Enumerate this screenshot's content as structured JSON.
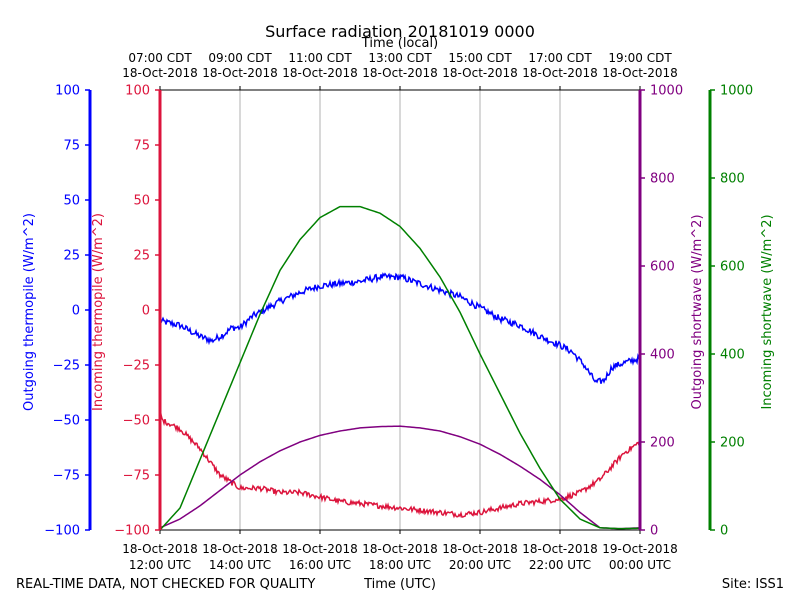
{
  "chart_data": {
    "type": "line",
    "title": "Surface radiation 20181019 0000",
    "top_axis_label": "Time (local)",
    "top_ticks": [
      {
        "line1": "07:00 CDT",
        "line2": "18-Oct-2018"
      },
      {
        "line1": "09:00 CDT",
        "line2": "18-Oct-2018"
      },
      {
        "line1": "11:00 CDT",
        "line2": "18-Oct-2018"
      },
      {
        "line1": "13:00 CDT",
        "line2": "18-Oct-2018"
      },
      {
        "line1": "15:00 CDT",
        "line2": "18-Oct-2018"
      },
      {
        "line1": "17:00 CDT",
        "line2": "18-Oct-2018"
      },
      {
        "line1": "19:00 CDT",
        "line2": "18-Oct-2018"
      }
    ],
    "bottom_ticks": [
      {
        "line1": "18-Oct-2018",
        "line2": "12:00 UTC"
      },
      {
        "line1": "18-Oct-2018",
        "line2": "14:00 UTC"
      },
      {
        "line1": "18-Oct-2018",
        "line2": "16:00 UTC"
      },
      {
        "line1": "18-Oct-2018",
        "line2": "18:00 UTC"
      },
      {
        "line1": "18-Oct-2018",
        "line2": "20:00 UTC"
      },
      {
        "line1": "18-Oct-2018",
        "line2": "22:00 UTC"
      },
      {
        "line1": "19-Oct-2018",
        "line2": "00:00 UTC"
      }
    ],
    "xlabel": "Time (UTC)",
    "xlim_hours_utc": [
      12,
      24
    ],
    "footer_left": "REAL-TIME DATA, NOT CHECKED FOR QUALITY",
    "footer_right": "Site: ISS1",
    "axes": {
      "outgoing_thermopile": {
        "label": "Outgoing thermopile (W/m^2)",
        "color": "#0000ff",
        "ylim": [
          -100,
          100
        ],
        "ticks": [
          "100",
          "75",
          "50",
          "25",
          "0",
          "−25",
          "−50",
          "−75",
          "−100"
        ]
      },
      "incoming_thermopile": {
        "label": "Incoming thermopile (W/m^2)",
        "color": "#dc143c",
        "ylim": [
          -100,
          100
        ],
        "ticks": [
          "100",
          "75",
          "50",
          "25",
          "0",
          "−25",
          "−50",
          "−75",
          "−100"
        ]
      },
      "outgoing_shortwave": {
        "label": "Outgoing shortwave (W/m^2)",
        "color": "#800080",
        "ylim": [
          0,
          1000
        ],
        "ticks": [
          "1000",
          "800",
          "600",
          "400",
          "200",
          "0"
        ]
      },
      "incoming_shortwave": {
        "label": "Incoming shortwave (W/m^2)",
        "color": "#008000",
        "ylim": [
          0,
          1000
        ],
        "ticks": [
          "1000",
          "800",
          "600",
          "400",
          "200",
          "0"
        ]
      }
    },
    "series": [
      {
        "name": "Outgoing thermopile",
        "axis": "outgoing_thermopile",
        "color": "#0000ff",
        "noise": 1.5,
        "x": [
          12.0,
          12.5,
          13.0,
          13.3,
          13.6,
          13.8,
          14.0,
          14.3,
          14.6,
          15.0,
          15.5,
          16.0,
          16.5,
          17.0,
          17.5,
          18.0,
          18.5,
          19.0,
          19.5,
          20.0,
          20.5,
          21.0,
          21.5,
          22.0,
          22.3,
          22.6,
          22.9,
          23.1,
          23.3,
          23.6,
          24.0
        ],
        "y": [
          -5,
          -7,
          -12,
          -14,
          -11,
          -8,
          -8,
          -3,
          0,
          4,
          8,
          11,
          12,
          13,
          15,
          15,
          12,
          9,
          6,
          1,
          -4,
          -7,
          -12,
          -16,
          -19,
          -25,
          -33,
          -32,
          -26,
          -24,
          -22
        ]
      },
      {
        "name": "Incoming thermopile",
        "axis": "incoming_thermopile",
        "color": "#dc143c",
        "noise": 1.2,
        "x": [
          12.0,
          12.05,
          12.5,
          13.0,
          13.5,
          14.0,
          14.5,
          15.0,
          15.5,
          16.0,
          16.5,
          17.0,
          17.5,
          18.0,
          18.5,
          19.0,
          19.5,
          20.0,
          20.5,
          21.0,
          21.5,
          22.0,
          22.5,
          23.0,
          23.3,
          23.6,
          24.0
        ],
        "y": [
          -45,
          -50,
          -54,
          -63,
          -75,
          -81,
          -81,
          -83,
          -83,
          -85,
          -87,
          -88,
          -89,
          -90,
          -91,
          -92,
          -93,
          -92,
          -90,
          -88,
          -87,
          -86,
          -83,
          -77,
          -71,
          -65,
          -60
        ]
      },
      {
        "name": "Outgoing shortwave",
        "axis": "outgoing_shortwave",
        "color": "#800080",
        "noise": 0,
        "x": [
          12.0,
          12.5,
          13.0,
          13.5,
          14.0,
          14.5,
          15.0,
          15.5,
          16.0,
          16.5,
          17.0,
          17.5,
          18.0,
          18.5,
          19.0,
          19.5,
          20.0,
          20.5,
          21.0,
          21.5,
          22.0,
          22.5,
          23.0,
          23.5,
          24.0
        ],
        "y": [
          5,
          25,
          55,
          90,
          125,
          155,
          180,
          200,
          215,
          225,
          232,
          235,
          236,
          232,
          225,
          212,
          195,
          172,
          145,
          115,
          80,
          40,
          5,
          3,
          5
        ]
      },
      {
        "name": "Incoming shortwave",
        "axis": "incoming_shortwave",
        "color": "#008000",
        "noise": 0,
        "x": [
          12.0,
          12.5,
          13.0,
          13.5,
          14.0,
          14.5,
          15.0,
          15.5,
          16.0,
          16.5,
          17.0,
          17.5,
          18.0,
          18.5,
          19.0,
          19.5,
          20.0,
          20.5,
          21.0,
          21.5,
          22.0,
          22.5,
          23.0,
          23.5,
          24.0
        ],
        "y": [
          0,
          50,
          160,
          270,
          380,
          490,
          590,
          660,
          710,
          735,
          735,
          720,
          690,
          640,
          575,
          495,
          400,
          310,
          220,
          140,
          70,
          25,
          5,
          3,
          4
        ]
      }
    ]
  }
}
